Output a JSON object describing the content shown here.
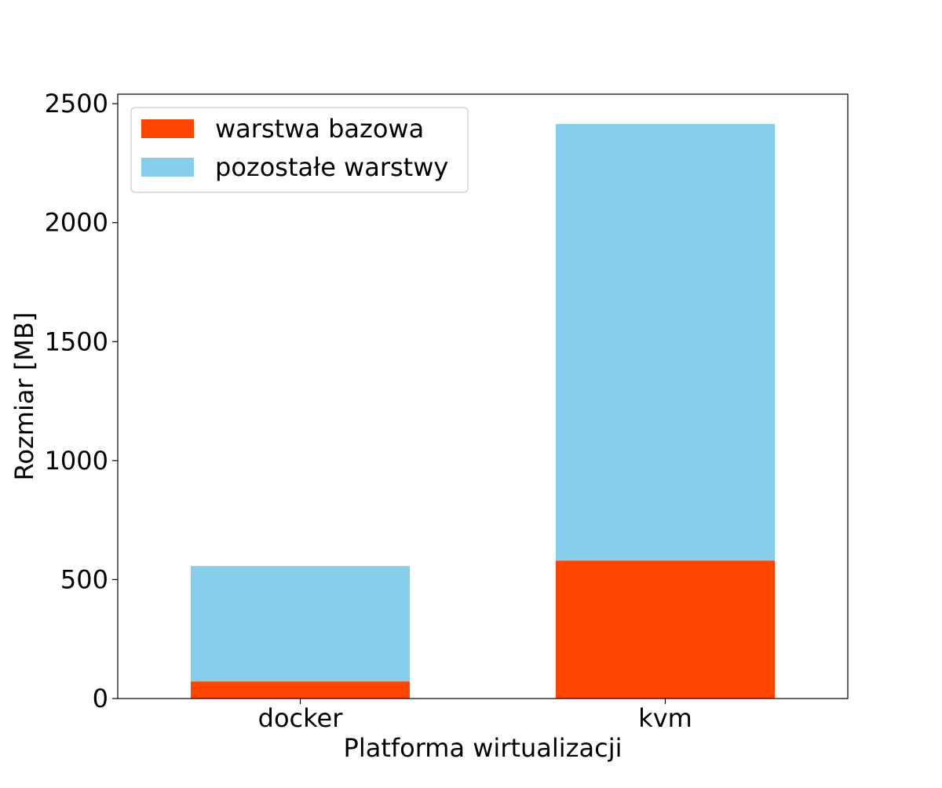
{
  "chart_data": {
    "type": "bar",
    "stacked": true,
    "categories": [
      "docker",
      "kvm"
    ],
    "series": [
      {
        "name": "warstwa bazowa",
        "color": "#ff4500",
        "values": [
          72,
          580
        ]
      },
      {
        "name": "pozostałe warstwy",
        "color": "#87ceeb",
        "values": [
          485,
          1835
        ]
      }
    ],
    "title": "",
    "xlabel": "Platforma wirtualizacji",
    "ylabel": "Rozmiar [MB]",
    "ylim": [
      0,
      2540
    ],
    "yticks": [
      0,
      500,
      1000,
      1500,
      2000,
      2500
    ],
    "grid": false,
    "legend_position": "top-left"
  }
}
